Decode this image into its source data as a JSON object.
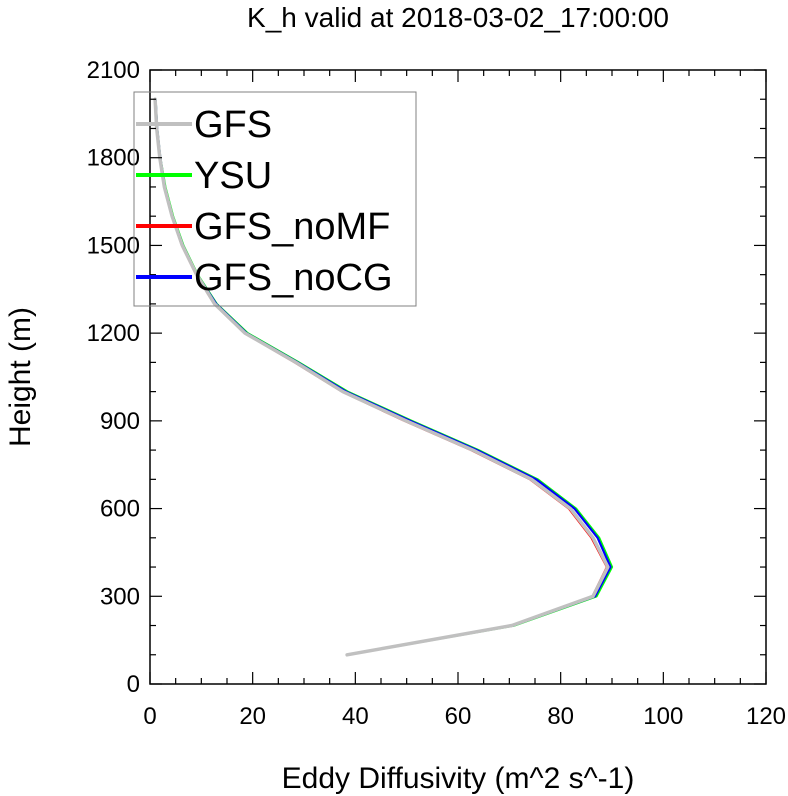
{
  "chart_data": {
    "type": "line",
    "title": "K_h valid at 2018-03-02_17:00:00",
    "xlabel": "Eddy Diffusivity (m^2 s^-1)",
    "ylabel": "Height (m)",
    "xlim": [
      0,
      120
    ],
    "ylim": [
      0,
      2100
    ],
    "xticks": [
      0,
      20,
      40,
      60,
      80,
      100,
      120
    ],
    "yticks": [
      0,
      300,
      600,
      900,
      1200,
      1500,
      1800,
      2100
    ],
    "grid": false,
    "legend_placement": "top-left",
    "series": [
      {
        "name": "YSU",
        "color": "#00ff00",
        "points": [
          [
            38.6,
            100
          ],
          [
            71,
            200
          ],
          [
            87,
            300
          ],
          [
            90,
            400
          ],
          [
            87.5,
            500
          ],
          [
            83,
            600
          ],
          [
            75.5,
            700
          ],
          [
            64,
            800
          ],
          [
            51,
            900
          ],
          [
            38.5,
            1000
          ],
          [
            29,
            1100
          ],
          [
            19,
            1200
          ],
          [
            13,
            1300
          ],
          [
            9.3,
            1400
          ],
          [
            6.5,
            1500
          ],
          [
            4.5,
            1600
          ],
          [
            3,
            1700
          ],
          [
            2,
            1800
          ],
          [
            1.4,
            1900
          ],
          [
            1.1,
            2000
          ]
        ]
      },
      {
        "name": "GFS_noCG",
        "color": "#0000ff",
        "points": [
          [
            38.5,
            100
          ],
          [
            70.8,
            200
          ],
          [
            86.7,
            300
          ],
          [
            89.7,
            400
          ],
          [
            87.2,
            500
          ],
          [
            82.7,
            600
          ],
          [
            75.2,
            700
          ],
          [
            63.7,
            800
          ],
          [
            50.7,
            900
          ],
          [
            38.2,
            1000
          ],
          [
            28.8,
            1100
          ],
          [
            18.8,
            1200
          ],
          [
            12.9,
            1300
          ],
          [
            9.2,
            1400
          ],
          [
            6.4,
            1500
          ],
          [
            4.4,
            1600
          ],
          [
            2.9,
            1700
          ],
          [
            2,
            1800
          ],
          [
            1.4,
            1900
          ],
          [
            1.1,
            2000
          ]
        ]
      },
      {
        "name": "GFS_noMF",
        "color": "#ff0000",
        "points": [
          [
            38.4,
            100
          ],
          [
            70.4,
            200
          ],
          [
            86.2,
            300
          ],
          [
            89,
            400
          ],
          [
            86,
            500
          ],
          [
            81.6,
            600
          ],
          [
            74,
            700
          ],
          [
            62.6,
            800
          ],
          [
            49.6,
            900
          ],
          [
            37.4,
            1000
          ],
          [
            28.2,
            1100
          ],
          [
            18.4,
            1200
          ],
          [
            12.5,
            1300
          ],
          [
            9,
            1400
          ],
          [
            6.2,
            1500
          ],
          [
            4.3,
            1600
          ],
          [
            2.8,
            1700
          ],
          [
            1.9,
            1800
          ],
          [
            1.3,
            1900
          ],
          [
            1,
            2000
          ]
        ]
      },
      {
        "name": "GFS",
        "color": "#c0c0c0",
        "points": [
          [
            38.4,
            100
          ],
          [
            70.5,
            200
          ],
          [
            86.3,
            300
          ],
          [
            89.2,
            400
          ],
          [
            86.3,
            500
          ],
          [
            81.9,
            600
          ],
          [
            74.3,
            700
          ],
          [
            62.9,
            800
          ],
          [
            49.9,
            900
          ],
          [
            37.6,
            1000
          ],
          [
            28.4,
            1100
          ],
          [
            18.5,
            1200
          ],
          [
            12.6,
            1300
          ],
          [
            9.1,
            1400
          ],
          [
            6.3,
            1500
          ],
          [
            4.3,
            1600
          ],
          [
            2.8,
            1700
          ],
          [
            1.9,
            1800
          ],
          [
            1.3,
            1900
          ],
          [
            1,
            2000
          ]
        ]
      }
    ],
    "legend": [
      "GFS",
      "YSU",
      "GFS_noMF",
      "GFS_noCG"
    ]
  }
}
